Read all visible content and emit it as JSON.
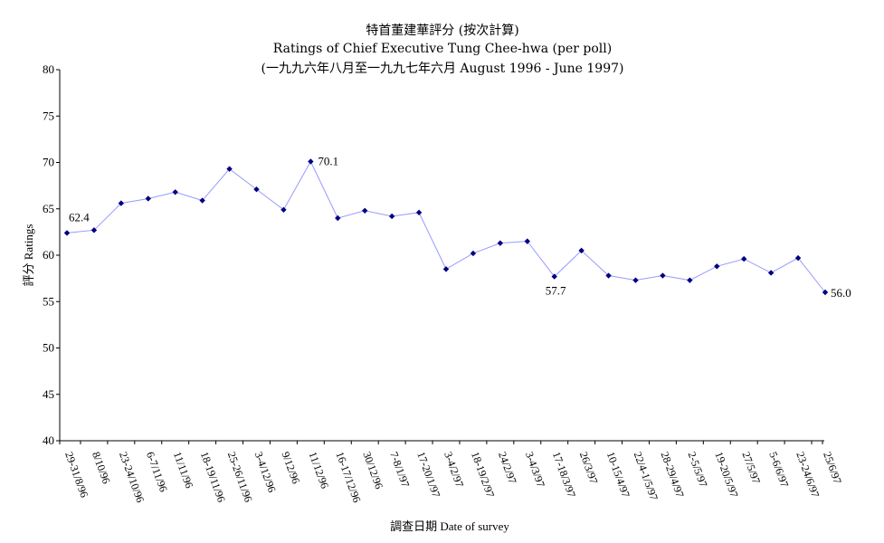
{
  "chart_data": {
    "type": "line",
    "title": "特首董建華評分 (按次計算)",
    "subtitle": "Ratings of Chief Executive Tung Chee-hwa (per poll)",
    "subtitle2": "(一九九六年八月至一九九七年六月 August 1996 - June 1997)",
    "xlabel": "調查日期 Date of survey",
    "ylabel": "評分 Ratings",
    "ylim": [
      40,
      80
    ],
    "yticks": [
      40,
      45,
      50,
      55,
      60,
      65,
      70,
      75,
      80
    ],
    "grid": false,
    "legend": "none",
    "line_color": "#9999ff",
    "marker_color": "#000080",
    "categories": [
      "29-31/8/96",
      "8/10/96",
      "23-24/10/96",
      "6-7/11/96",
      "11/11/96",
      "18-19/11/96",
      "25-26/11/96",
      "3-4/12/96",
      "9/12/96",
      "11/12/96",
      "16-17/12/96",
      "30/12/96",
      "7-8/1/97",
      "17-20/1/97",
      "3-4/2/97",
      "18-19/2/97",
      "24/2/97",
      "3-4/3/97",
      "17-18/3/97",
      "26/3/97",
      "10-15/4/97",
      "22/4-1/5/97",
      "28-29/4/97",
      "2-5/5/97",
      "19-20/5/97",
      "27/5/97",
      "5-6/6/97",
      "23-24/6/97",
      "25/6/97"
    ],
    "values": [
      62.4,
      62.7,
      65.6,
      66.1,
      66.8,
      65.9,
      69.3,
      67.1,
      64.9,
      70.1,
      64.0,
      64.8,
      64.2,
      64.6,
      58.5,
      60.2,
      61.3,
      61.5,
      57.7,
      60.5,
      57.8,
      57.3,
      57.8,
      57.3,
      58.8,
      59.6,
      58.1,
      59.7,
      56.0
    ],
    "data_labels": [
      {
        "index": 0,
        "text": "62.4"
      },
      {
        "index": 9,
        "text": "70.1"
      },
      {
        "index": 18,
        "text": "57.7"
      },
      {
        "index": 28,
        "text": "56.0"
      }
    ]
  }
}
